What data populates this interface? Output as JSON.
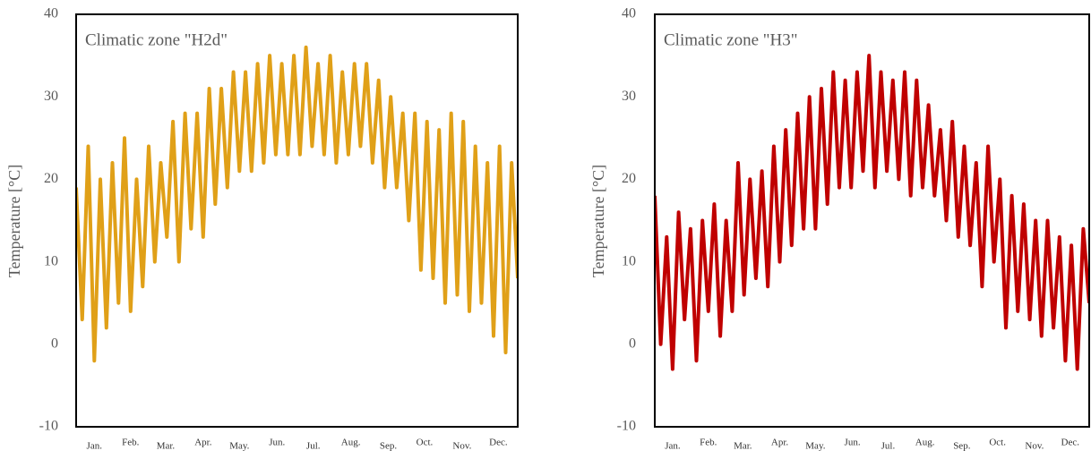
{
  "chart_data": [
    {
      "type": "line",
      "title": "Climatic zone \"H2d\"",
      "y_label": "Temperature [°C]",
      "x": [
        0,
        5,
        10,
        15,
        20,
        25,
        30,
        35,
        40,
        45,
        50,
        55,
        60,
        65,
        70,
        75,
        80,
        85,
        90,
        95,
        100,
        105,
        110,
        115,
        120,
        125,
        130,
        135,
        140,
        145,
        150,
        155,
        160,
        165,
        170,
        175,
        180,
        185,
        190,
        195,
        200,
        205,
        210,
        215,
        220,
        225,
        230,
        235,
        240,
        245,
        250,
        255,
        260,
        265,
        270,
        275,
        280,
        285,
        290,
        295,
        300,
        305,
        310,
        315,
        320,
        325,
        330,
        335,
        340,
        345,
        350,
        355,
        360,
        365
      ],
      "series": [
        {
          "color": "#e0a018",
          "values": [
            19,
            3,
            24,
            -2,
            20,
            2,
            22,
            5,
            25,
            4,
            20,
            7,
            24,
            10,
            22,
            13,
            27,
            10,
            28,
            14,
            28,
            13,
            31,
            17,
            31,
            19,
            33,
            21,
            33,
            21,
            34,
            22,
            35,
            23,
            34,
            23,
            35,
            23,
            36,
            24,
            34,
            23,
            35,
            22,
            33,
            23,
            34,
            24,
            34,
            22,
            32,
            19,
            30,
            19,
            28,
            15,
            28,
            9,
            27,
            8,
            26,
            5,
            28,
            6,
            27,
            4,
            24,
            5,
            22,
            1,
            24,
            -1,
            22,
            8
          ]
        }
      ],
      "xlim": [
        0,
        365
      ],
      "xticks": [
        {
          "value": 15,
          "label": "Jan."
        },
        {
          "value": 45,
          "label": "Feb."
        },
        {
          "value": 74,
          "label": "Mar."
        },
        {
          "value": 105,
          "label": "Apr."
        },
        {
          "value": 135,
          "label": "May."
        },
        {
          "value": 166,
          "label": "Jun."
        },
        {
          "value": 196,
          "label": "Jul."
        },
        {
          "value": 227,
          "label": "Aug."
        },
        {
          "value": 258,
          "label": "Sep."
        },
        {
          "value": 288,
          "label": "Oct."
        },
        {
          "value": 319,
          "label": "Nov."
        },
        {
          "value": 349,
          "label": "Dec."
        }
      ],
      "ylim": [
        -10,
        40
      ],
      "yticks": [
        -10,
        0,
        10,
        20,
        30,
        40
      ],
      "grid": false
    },
    {
      "type": "line",
      "title": "Climatic zone \"H3\"",
      "y_label": "Temperature [°C]",
      "x": [
        0,
        5,
        10,
        15,
        20,
        25,
        30,
        35,
        40,
        45,
        50,
        55,
        60,
        65,
        70,
        75,
        80,
        85,
        90,
        95,
        100,
        105,
        110,
        115,
        120,
        125,
        130,
        135,
        140,
        145,
        150,
        155,
        160,
        165,
        170,
        175,
        180,
        185,
        190,
        195,
        200,
        205,
        210,
        215,
        220,
        225,
        230,
        235,
        240,
        245,
        250,
        255,
        260,
        265,
        270,
        275,
        280,
        285,
        290,
        295,
        300,
        305,
        310,
        315,
        320,
        325,
        330,
        335,
        340,
        345,
        350,
        355,
        360,
        365
      ],
      "series": [
        {
          "color": "#c00000",
          "values": [
            18,
            0,
            13,
            -3,
            16,
            3,
            14,
            -2,
            15,
            4,
            17,
            1,
            15,
            4,
            22,
            6,
            20,
            8,
            21,
            7,
            24,
            10,
            26,
            12,
            28,
            14,
            30,
            14,
            31,
            17,
            33,
            19,
            32,
            19,
            33,
            21,
            35,
            19,
            33,
            21,
            32,
            20,
            33,
            18,
            32,
            19,
            29,
            18,
            26,
            15,
            27,
            13,
            24,
            12,
            22,
            7,
            24,
            10,
            20,
            2,
            18,
            4,
            17,
            3,
            15,
            1,
            15,
            2,
            13,
            -2,
            12,
            -3,
            14,
            5
          ]
        }
      ],
      "xlim": [
        0,
        365
      ],
      "xticks": [
        {
          "value": 15,
          "label": "Jan."
        },
        {
          "value": 45,
          "label": "Feb."
        },
        {
          "value": 74,
          "label": "Mar."
        },
        {
          "value": 105,
          "label": "Apr."
        },
        {
          "value": 135,
          "label": "May."
        },
        {
          "value": 166,
          "label": "Jun."
        },
        {
          "value": 196,
          "label": "Jul."
        },
        {
          "value": 227,
          "label": "Aug."
        },
        {
          "value": 258,
          "label": "Sep."
        },
        {
          "value": 288,
          "label": "Oct."
        },
        {
          "value": 319,
          "label": "Nov."
        },
        {
          "value": 349,
          "label": "Dec."
        }
      ],
      "ylim": [
        -10,
        40
      ],
      "yticks": [
        -10,
        0,
        10,
        20,
        30,
        40
      ],
      "grid": false
    }
  ]
}
